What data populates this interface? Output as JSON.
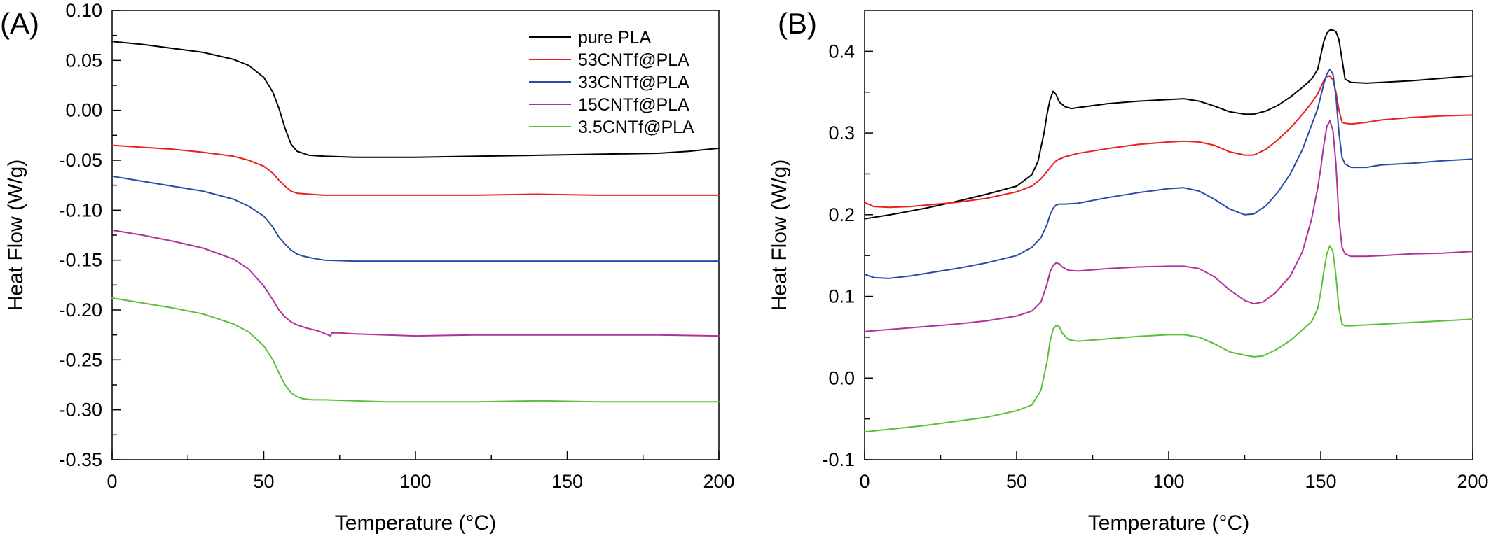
{
  "chart_data": [
    {
      "panel_label": "(A)",
      "type": "line",
      "xlabel": "Temperature (°C)",
      "ylabel": "Heat Flow (W/g)",
      "xlim": [
        0,
        200
      ],
      "ylim": [
        -0.35,
        0.1
      ],
      "xticks": [
        0,
        50,
        100,
        150,
        200
      ],
      "xtick_labels": [
        "0",
        "50",
        "100",
        "150",
        "200"
      ],
      "yticks": [
        -0.35,
        -0.3,
        -0.25,
        -0.2,
        -0.15,
        -0.1,
        -0.05,
        0.0,
        0.05,
        0.1
      ],
      "ytick_labels": [
        "-0.35",
        "-0.30",
        "-0.25",
        "-0.20",
        "-0.15",
        "-0.10",
        "-0.05",
        "0.00",
        "0.05",
        "0.10"
      ],
      "grid": false,
      "legend_position": "top-right",
      "series": [
        {
          "name": "pure PLA",
          "color": "#000000",
          "x": [
            0,
            10,
            20,
            30,
            40,
            45,
            50,
            53,
            55,
            57,
            59,
            61,
            65,
            70,
            80,
            90,
            100,
            120,
            140,
            160,
            180,
            190,
            200
          ],
          "y": [
            0.069,
            0.066,
            0.062,
            0.058,
            0.051,
            0.045,
            0.033,
            0.018,
            0.002,
            -0.018,
            -0.034,
            -0.041,
            -0.045,
            -0.046,
            -0.047,
            -0.047,
            -0.047,
            -0.046,
            -0.045,
            -0.044,
            -0.043,
            -0.041,
            -0.038
          ]
        },
        {
          "name": "53CNTf@PLA",
          "color": "#e8201e",
          "x": [
            0,
            10,
            20,
            30,
            40,
            45,
            50,
            53,
            55,
            57,
            59,
            61,
            65,
            70,
            80,
            100,
            120,
            140,
            160,
            180,
            200
          ],
          "y": [
            -0.035,
            -0.037,
            -0.039,
            -0.042,
            -0.046,
            -0.05,
            -0.056,
            -0.063,
            -0.07,
            -0.076,
            -0.081,
            -0.083,
            -0.084,
            -0.085,
            -0.085,
            -0.085,
            -0.085,
            -0.084,
            -0.085,
            -0.085,
            -0.085
          ]
        },
        {
          "name": "33CNTf@PLA",
          "color": "#2b4aa8",
          "x": [
            0,
            10,
            20,
            30,
            40,
            45,
            50,
            53,
            55,
            57,
            59,
            61,
            63,
            66,
            70,
            80,
            100,
            120,
            140,
            160,
            180,
            200
          ],
          "y": [
            -0.066,
            -0.071,
            -0.076,
            -0.081,
            -0.089,
            -0.096,
            -0.106,
            -0.117,
            -0.127,
            -0.134,
            -0.14,
            -0.144,
            -0.146,
            -0.148,
            -0.15,
            -0.151,
            -0.151,
            -0.151,
            -0.151,
            -0.151,
            -0.151,
            -0.151
          ]
        },
        {
          "name": "15CNTf@PLA",
          "color": "#b0309c",
          "x": [
            0,
            10,
            20,
            30,
            40,
            45,
            50,
            53,
            55,
            57,
            59,
            61,
            64,
            68,
            72,
            72.5,
            75,
            80,
            100,
            120,
            140,
            160,
            180,
            200
          ],
          "y": [
            -0.12,
            -0.125,
            -0.131,
            -0.138,
            -0.149,
            -0.159,
            -0.176,
            -0.19,
            -0.2,
            -0.207,
            -0.212,
            -0.215,
            -0.218,
            -0.221,
            -0.226,
            -0.223,
            -0.223,
            -0.224,
            -0.226,
            -0.225,
            -0.225,
            -0.225,
            -0.225,
            -0.226
          ]
        },
        {
          "name": "3.5CNTf@PLA",
          "color": "#5cbf3a",
          "x": [
            0,
            10,
            20,
            30,
            40,
            45,
            50,
            53,
            55,
            57,
            59,
            61,
            63,
            66,
            70,
            80,
            90,
            100,
            120,
            140,
            160,
            180,
            200
          ],
          "y": [
            -0.188,
            -0.193,
            -0.198,
            -0.204,
            -0.214,
            -0.222,
            -0.236,
            -0.25,
            -0.263,
            -0.275,
            -0.283,
            -0.287,
            -0.289,
            -0.29,
            -0.29,
            -0.291,
            -0.292,
            -0.292,
            -0.292,
            -0.291,
            -0.292,
            -0.292,
            -0.292
          ]
        }
      ]
    },
    {
      "panel_label": "(B)",
      "type": "line",
      "xlabel": "Temperature (°C)",
      "ylabel": "Heat Flow (W/g)",
      "xlim": [
        0,
        200
      ],
      "ylim": [
        -0.1,
        0.45
      ],
      "xticks": [
        0,
        50,
        100,
        150,
        200
      ],
      "xtick_labels": [
        "0",
        "50",
        "100",
        "150",
        "200"
      ],
      "yticks": [
        -0.1,
        0.0,
        0.1,
        0.2,
        0.3,
        0.4
      ],
      "ytick_labels": [
        "-0.1",
        "0.0",
        "0.1",
        "0.2",
        "0.3",
        "0.4"
      ],
      "grid": false,
      "series": [
        {
          "name": "",
          "color": "#000000",
          "x": [
            0,
            10,
            20,
            30,
            40,
            50,
            55,
            57,
            59,
            60,
            61,
            62,
            63,
            64,
            66,
            68,
            70,
            80,
            90,
            100,
            105,
            110,
            115,
            120,
            125,
            128,
            132,
            136,
            140,
            144,
            147,
            149,
            150,
            151,
            152,
            153,
            154,
            155,
            156,
            157,
            158,
            160,
            165,
            170,
            180,
            190,
            200
          ],
          "y": [
            0.195,
            0.201,
            0.208,
            0.216,
            0.225,
            0.235,
            0.249,
            0.265,
            0.3,
            0.323,
            0.341,
            0.351,
            0.347,
            0.338,
            0.332,
            0.33,
            0.331,
            0.336,
            0.339,
            0.341,
            0.342,
            0.339,
            0.333,
            0.326,
            0.323,
            0.323,
            0.327,
            0.334,
            0.344,
            0.356,
            0.366,
            0.378,
            0.395,
            0.412,
            0.422,
            0.426,
            0.426,
            0.424,
            0.414,
            0.39,
            0.366,
            0.362,
            0.361,
            0.362,
            0.364,
            0.367,
            0.37
          ]
        },
        {
          "name": "",
          "color": "#e8201e",
          "x": [
            0,
            3,
            8,
            15,
            30,
            40,
            50,
            55,
            58,
            60,
            62,
            63,
            64,
            66,
            70,
            80,
            90,
            100,
            105,
            110,
            115,
            120,
            125,
            128,
            132,
            136,
            140,
            144,
            147,
            149,
            150,
            151,
            152,
            153,
            154,
            155,
            156,
            157,
            158,
            160,
            165,
            170,
            180,
            190,
            200
          ],
          "y": [
            0.215,
            0.21,
            0.209,
            0.21,
            0.215,
            0.22,
            0.228,
            0.235,
            0.244,
            0.253,
            0.262,
            0.266,
            0.268,
            0.271,
            0.275,
            0.281,
            0.286,
            0.289,
            0.29,
            0.289,
            0.285,
            0.277,
            0.273,
            0.273,
            0.28,
            0.292,
            0.306,
            0.323,
            0.337,
            0.348,
            0.356,
            0.364,
            0.369,
            0.37,
            0.365,
            0.35,
            0.328,
            0.313,
            0.312,
            0.311,
            0.313,
            0.316,
            0.319,
            0.321,
            0.322
          ]
        },
        {
          "name": "",
          "color": "#2b4aa8",
          "x": [
            0,
            3,
            8,
            15,
            30,
            40,
            50,
            55,
            58,
            60,
            61,
            62,
            63,
            64,
            66,
            70,
            80,
            90,
            100,
            105,
            110,
            115,
            120,
            125,
            128,
            132,
            136,
            140,
            144,
            147,
            149,
            150,
            151,
            152,
            153,
            154,
            155,
            156,
            157,
            158,
            160,
            165,
            170,
            180,
            190,
            200
          ],
          "y": [
            0.127,
            0.123,
            0.122,
            0.125,
            0.134,
            0.141,
            0.15,
            0.16,
            0.172,
            0.188,
            0.2,
            0.208,
            0.212,
            0.213,
            0.213,
            0.214,
            0.221,
            0.227,
            0.232,
            0.233,
            0.229,
            0.219,
            0.207,
            0.2,
            0.201,
            0.211,
            0.228,
            0.25,
            0.28,
            0.31,
            0.33,
            0.345,
            0.36,
            0.372,
            0.378,
            0.372,
            0.345,
            0.3,
            0.27,
            0.262,
            0.258,
            0.258,
            0.261,
            0.263,
            0.266,
            0.268
          ]
        },
        {
          "name": "",
          "color": "#b0309c",
          "x": [
            0,
            10,
            20,
            30,
            40,
            50,
            55,
            58,
            60,
            61,
            62,
            63,
            64,
            65,
            67,
            70,
            80,
            90,
            100,
            105,
            110,
            115,
            120,
            125,
            128,
            131,
            135,
            140,
            144,
            147,
            149,
            150,
            151,
            152,
            153,
            154,
            155,
            156,
            157,
            158,
            160,
            165,
            170,
            180,
            190,
            200
          ],
          "y": [
            0.057,
            0.06,
            0.063,
            0.066,
            0.07,
            0.076,
            0.082,
            0.093,
            0.115,
            0.13,
            0.138,
            0.141,
            0.14,
            0.136,
            0.132,
            0.131,
            0.134,
            0.136,
            0.137,
            0.137,
            0.134,
            0.124,
            0.108,
            0.095,
            0.091,
            0.093,
            0.104,
            0.125,
            0.155,
            0.195,
            0.233,
            0.257,
            0.285,
            0.308,
            0.315,
            0.303,
            0.262,
            0.195,
            0.16,
            0.152,
            0.149,
            0.149,
            0.15,
            0.152,
            0.153,
            0.155
          ]
        },
        {
          "name": "",
          "color": "#5cbf3a",
          "x": [
            0,
            10,
            20,
            30,
            40,
            50,
            55,
            58,
            60,
            61,
            62,
            63,
            64,
            65,
            67,
            70,
            80,
            90,
            100,
            105,
            110,
            115,
            120,
            125,
            128,
            131,
            135,
            140,
            144,
            147,
            149,
            150,
            151,
            152,
            153,
            154,
            155,
            156,
            157,
            158,
            160,
            165,
            170,
            180,
            190,
            200
          ],
          "y": [
            -0.066,
            -0.062,
            -0.058,
            -0.053,
            -0.048,
            -0.04,
            -0.033,
            -0.015,
            0.02,
            0.045,
            0.06,
            0.064,
            0.063,
            0.055,
            0.047,
            0.045,
            0.048,
            0.051,
            0.053,
            0.053,
            0.05,
            0.042,
            0.032,
            0.028,
            0.026,
            0.027,
            0.034,
            0.046,
            0.059,
            0.069,
            0.085,
            0.105,
            0.13,
            0.152,
            0.162,
            0.155,
            0.125,
            0.085,
            0.066,
            0.064,
            0.064,
            0.065,
            0.066,
            0.068,
            0.07,
            0.072
          ]
        }
      ]
    }
  ]
}
